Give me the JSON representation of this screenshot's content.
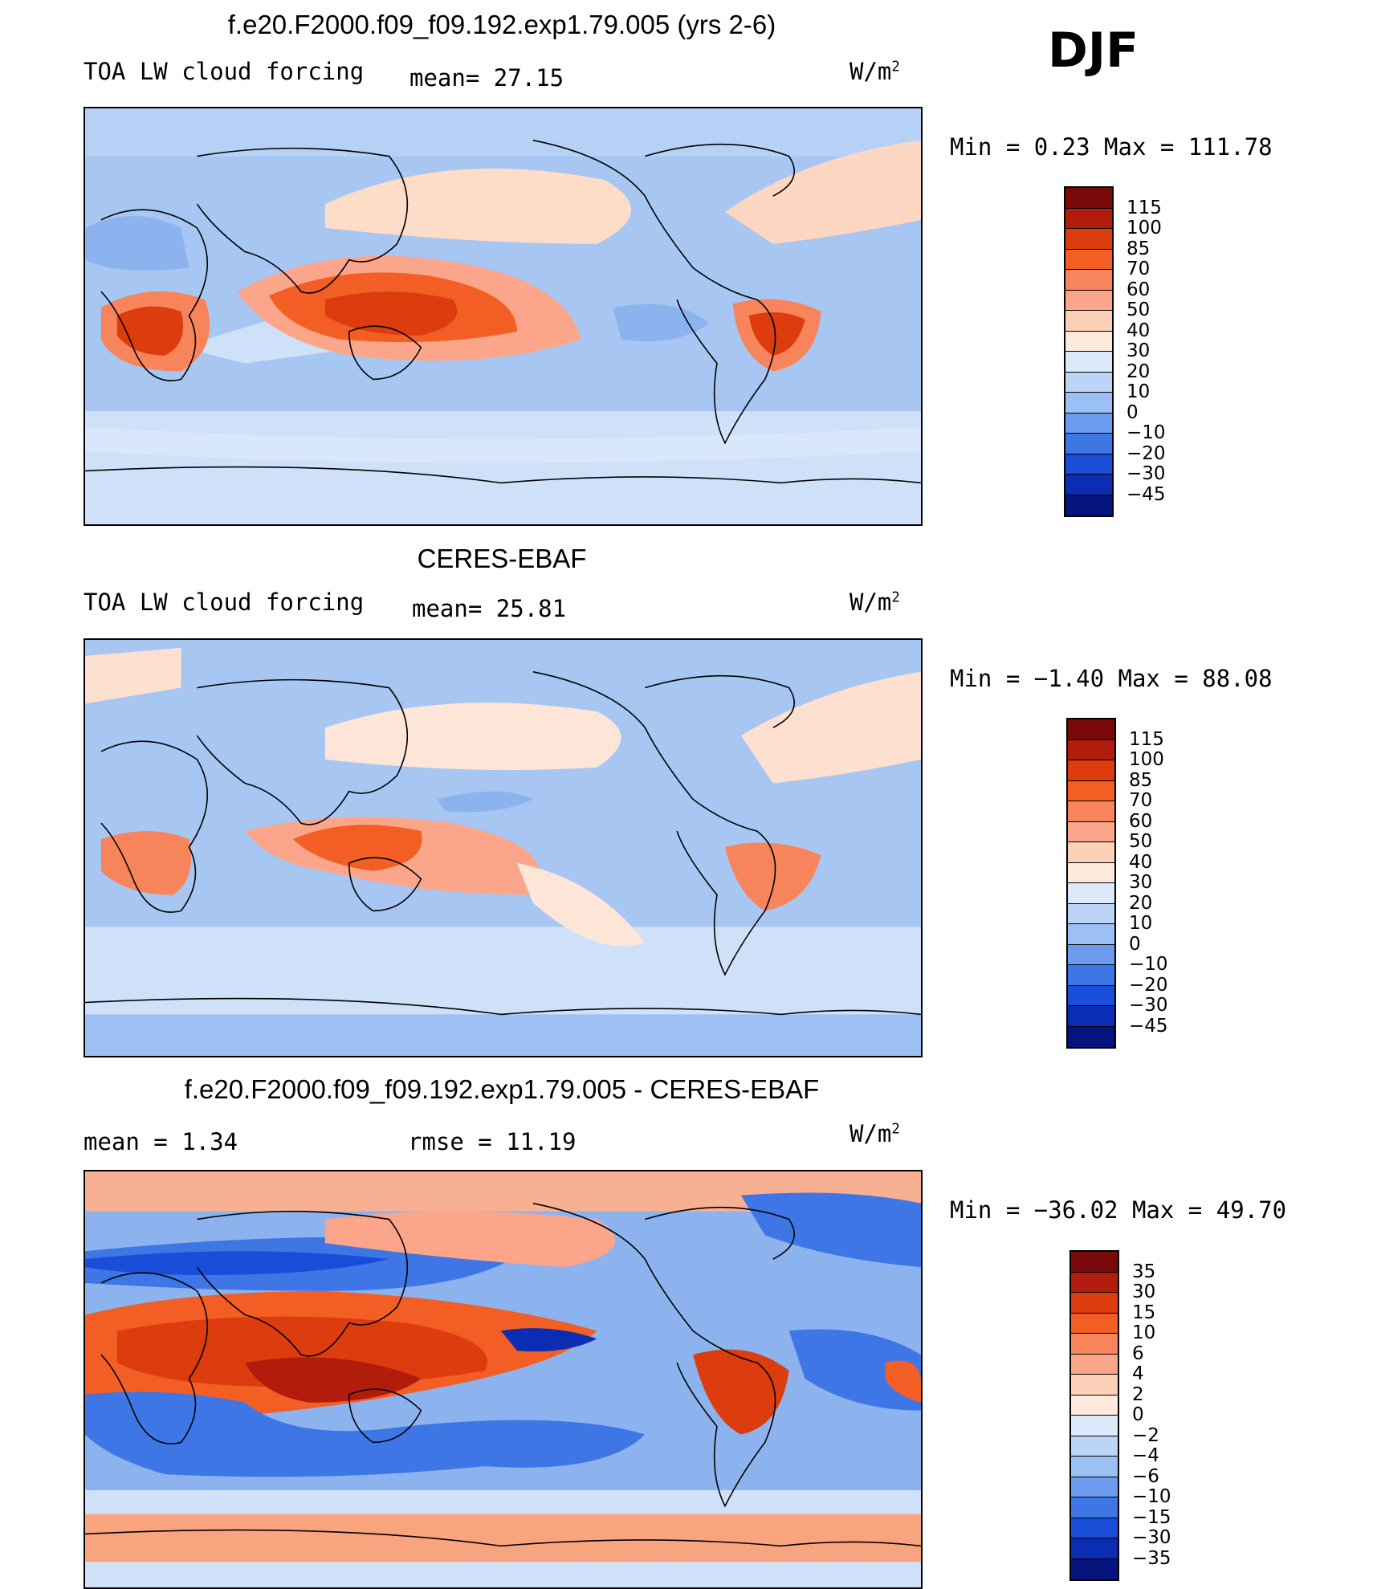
{
  "season": "DJF",
  "panels": [
    {
      "title": "f.e20.F2000.f09_f09.192.exp1.79.005 (yrs 2-6)",
      "left_label": "TOA LW cloud forcing",
      "mid_label": "mean=  27.15",
      "units": "W/m",
      "units_sup": "2",
      "minmax": "Min =   0.23 Max = 111.78",
      "map_name": "model-map",
      "ticks": [
        "115",
        "100",
        "85",
        "70",
        "60",
        "50",
        "40",
        "30",
        "20",
        "10",
        "0",
        "−10",
        "−20",
        "−30",
        "−45"
      ]
    },
    {
      "title": "CERES-EBAF",
      "left_label": "TOA LW cloud forcing",
      "mid_label": "mean=  25.81",
      "units": "W/m",
      "units_sup": "2",
      "minmax": "Min =  −1.40 Max =  88.08",
      "map_name": "obs-map",
      "ticks": [
        "115",
        "100",
        "85",
        "70",
        "60",
        "50",
        "40",
        "30",
        "20",
        "10",
        "0",
        "−10",
        "−20",
        "−30",
        "−45"
      ]
    },
    {
      "title": "f.e20.F2000.f09_f09.192.exp1.79.005 - CERES-EBAF",
      "left_label": "mean =   1.34",
      "mid_label": "rmse =   11.19",
      "units": "W/m",
      "units_sup": "2",
      "minmax": "Min = −36.02 Max =  49.70",
      "map_name": "difference-map",
      "ticks": [
        "35",
        "30",
        "15",
        "10",
        "6",
        "4",
        "2",
        "0",
        "−2",
        "−4",
        "−6",
        "−10",
        "−15",
        "−30",
        "−35"
      ]
    }
  ],
  "colors": {
    "abs_scale": [
      "#7a0a0a",
      "#b21c0c",
      "#dc3c0e",
      "#f25e24",
      "#f7845a",
      "#fba68a",
      "#fdd0b8",
      "#fdeadd",
      "#dbe9fb",
      "#bcd5f7",
      "#9cbff4",
      "#6c9cee",
      "#3f76e6",
      "#1a4ed9",
      "#0b2db3",
      "#05137d"
    ],
    "diff_scale": [
      "#7a0a0a",
      "#b21c0c",
      "#dc3c0e",
      "#f25e24",
      "#f7845a",
      "#fba68a",
      "#fdd0b8",
      "#fdeadd",
      "#dbe9fb",
      "#bcd5f7",
      "#9cbff4",
      "#6c9cee",
      "#3f76e6",
      "#1a4ed9",
      "#0b2db3",
      "#05137d"
    ]
  }
}
